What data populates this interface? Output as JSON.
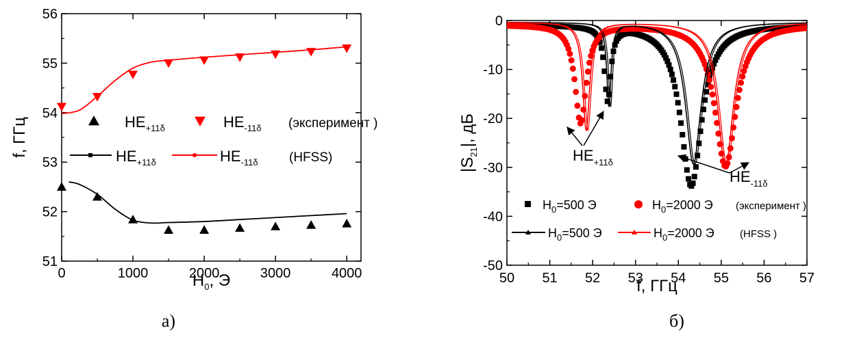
{
  "chart_data": [
    {
      "type": "scatter",
      "caption": "а)",
      "xlabel": "H",
      "xlabel_sub": "0",
      "xlabel_unit": ", Э",
      "ylabel": "f, ГГц",
      "xlim": [
        0,
        4200
      ],
      "ylim": [
        51,
        56
      ],
      "xticks": [
        "0",
        "1000",
        "2000",
        "3000",
        "4000"
      ],
      "yticks": [
        "51",
        "52",
        "53",
        "54",
        "55",
        "56"
      ],
      "legend": {
        "row1": [
          {
            "label": "HE",
            "sub": "+11δ",
            "marker": "triangle-up",
            "color": "#000000"
          },
          {
            "label": "HE",
            "sub": "-11δ",
            "marker": "triangle-down",
            "color": "#ff0000"
          }
        ],
        "row1_note": "(эксперимент )",
        "row2": [
          {
            "label": "HE",
            "sub": "+11δ",
            "color": "#000000"
          },
          {
            "label": "HE",
            "sub": "-11δ",
            "color": "#ff0000"
          }
        ],
        "row2_note": "(HFSS)"
      },
      "series": [
        {
          "label": "HE",
          "sub": "+11δ",
          "kind": "experiment",
          "marker": "triangle-up",
          "color": "#000000",
          "x": [
            0,
            500,
            1000,
            1500,
            2000,
            2500,
            3000,
            3500,
            4000
          ],
          "y": [
            52.5,
            52.3,
            51.84,
            51.63,
            51.63,
            51.67,
            51.7,
            51.73,
            51.76
          ]
        },
        {
          "label": "HE",
          "sub": "-11δ",
          "kind": "experiment",
          "marker": "triangle-down",
          "color": "#ff0000",
          "x": [
            0,
            500,
            1000,
            1500,
            2000,
            2500,
            3000,
            3500,
            4000
          ],
          "y": [
            54.12,
            54.32,
            54.77,
            55.0,
            55.06,
            55.12,
            55.18,
            55.23,
            55.3
          ]
        },
        {
          "label": "HE",
          "sub": "+11δ",
          "kind": "HFSS",
          "color": "#000000",
          "x": [
            100,
            250,
            500,
            750,
            1000,
            1250,
            1500,
            2000,
            2500,
            3000,
            3500,
            4000
          ],
          "y": [
            52.6,
            52.55,
            52.35,
            52.05,
            51.83,
            51.77,
            51.78,
            51.8,
            51.84,
            51.88,
            51.92,
            51.96
          ]
        },
        {
          "label": "HE",
          "sub": "-11δ",
          "kind": "HFSS",
          "color": "#ff0000",
          "x": [
            0,
            250,
            500,
            750,
            1000,
            1250,
            1500,
            2000,
            2500,
            3000,
            3500,
            4000
          ],
          "y": [
            53.98,
            54.05,
            54.33,
            54.65,
            54.9,
            55.02,
            55.06,
            55.12,
            55.17,
            55.22,
            55.27,
            55.33
          ]
        }
      ]
    },
    {
      "type": "line",
      "caption": "б)",
      "xlabel": "f, ГГц",
      "ylabel_pre": "|S",
      "ylabel_sub": "21",
      "ylabel_post": "|, дБ",
      "xlim": [
        50,
        57
      ],
      "ylim": [
        -50,
        0
      ],
      "xticks": [
        "50",
        "51",
        "52",
        "53",
        "54",
        "55",
        "56",
        "57"
      ],
      "yticks": [
        "0",
        "-10",
        "-20",
        "-30",
        "-40",
        "-50"
      ],
      "annotations": [
        {
          "text": "HE",
          "sub": "+11δ"
        },
        {
          "text": "HE",
          "sub": "-11δ"
        }
      ],
      "legend": {
        "row1": [
          {
            "label": "H",
            "sub": "0",
            "suffix": "=500 Э",
            "marker": "square",
            "color": "#000000"
          },
          {
            "label": "H",
            "sub": "0",
            "suffix": "=2000 Э",
            "marker": "circle",
            "color": "#ff0000"
          }
        ],
        "row1_note": "(эксперимент )",
        "row2": [
          {
            "label": "H",
            "sub": "0",
            "suffix": "=500 Э",
            "color": "#000000"
          },
          {
            "label": "H",
            "sub": "0",
            "suffix": "=2000 Э",
            "color": "#ff0000"
          }
        ],
        "row2_note": "(HFSS )"
      },
      "series": [
        {
          "label": "H0=500 Э",
          "kind": "experiment",
          "marker": "square",
          "color": "#000000",
          "dips": [
            {
              "f0": 52.35,
              "depth": 15,
              "w": 0.09
            },
            {
              "f0": 54.3,
              "depth": 33,
              "w": 0.3
            }
          ],
          "baseline": -0.8
        },
        {
          "label": "H0=2000 Э",
          "kind": "experiment",
          "marker": "circle",
          "color": "#ff0000",
          "dips": [
            {
              "f0": 51.72,
              "depth": 20,
              "w": 0.16
            },
            {
              "f0": 55.1,
              "depth": 29,
              "w": 0.3
            }
          ],
          "baseline": -0.8
        },
        {
          "label": "H0=500 Э",
          "kind": "HFSS",
          "color": "#000000",
          "dips": [
            {
              "f0": 52.38,
              "depth": 17,
              "w": 0.06
            },
            {
              "f0": 54.35,
              "depth": 29,
              "w": 0.22
            }
          ],
          "baseline": -0.3
        },
        {
          "label": "H0=2000 Э",
          "kind": "HFSS",
          "color": "#ff0000",
          "dips": [
            {
              "f0": 51.85,
              "depth": 22,
              "w": 0.1
            },
            {
              "f0": 55.1,
              "depth": 29.5,
              "w": 0.22
            }
          ],
          "baseline": -0.3
        }
      ]
    }
  ]
}
